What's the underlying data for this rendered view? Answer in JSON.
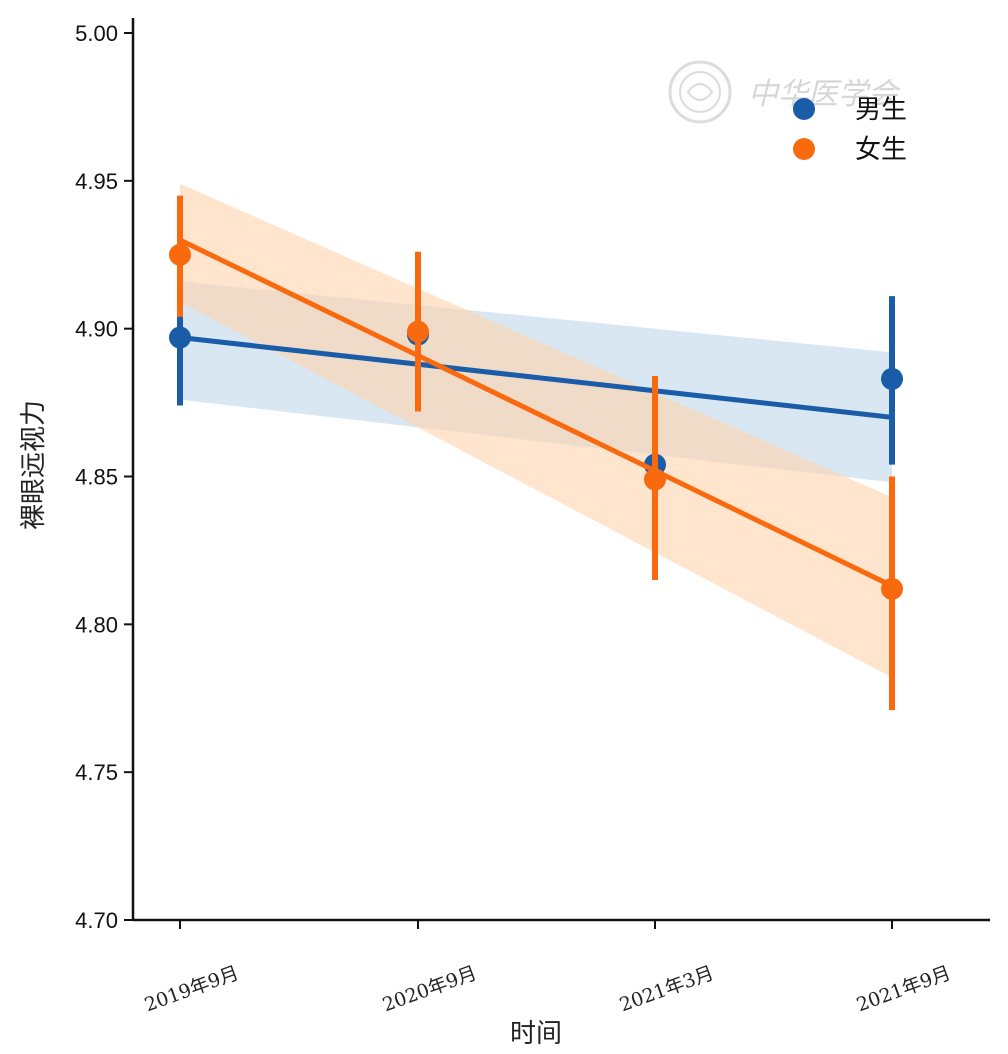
{
  "chart_data": {
    "type": "line",
    "xlabel": "时间",
    "ylabel": "裸眼远视力",
    "categories": [
      "2019年9月",
      "2020年9月",
      "2021年3月",
      "2021年9月"
    ],
    "ylim": [
      4.7,
      5.0
    ],
    "yticks": [
      "4.70",
      "4.75",
      "4.80",
      "4.85",
      "4.90",
      "4.95",
      "5.00"
    ],
    "legend_position": "top-right",
    "grid": false,
    "series": [
      {
        "name": "男生",
        "color": "#1a5ca8",
        "band_color": "#b9d3ea",
        "values": [
          4.897,
          4.898,
          4.854,
          4.883
        ],
        "ci_low": [
          4.874,
          4.872,
          4.825,
          4.854
        ],
        "ci_high": [
          4.921,
          4.922,
          4.882,
          4.911
        ],
        "fit_line": [
          4.897,
          4.87
        ],
        "fit_band_low": [
          4.876,
          4.848
        ],
        "fit_band_high": [
          4.916,
          4.892
        ]
      },
      {
        "name": "女生",
        "color": "#f96a0e",
        "band_color": "#ffd3ad",
        "values": [
          4.925,
          4.899,
          4.849,
          4.812
        ],
        "ci_low": [
          4.904,
          4.872,
          4.815,
          4.771
        ],
        "ci_high": [
          4.945,
          4.926,
          4.884,
          4.85
        ],
        "fit_line": [
          4.93,
          4.813
        ],
        "fit_band_low": [
          4.909,
          4.782
        ],
        "fit_band_high": [
          4.949,
          4.843
        ]
      }
    ]
  },
  "watermark": {
    "text": "中华医学会",
    "seal": "seal-logo"
  }
}
